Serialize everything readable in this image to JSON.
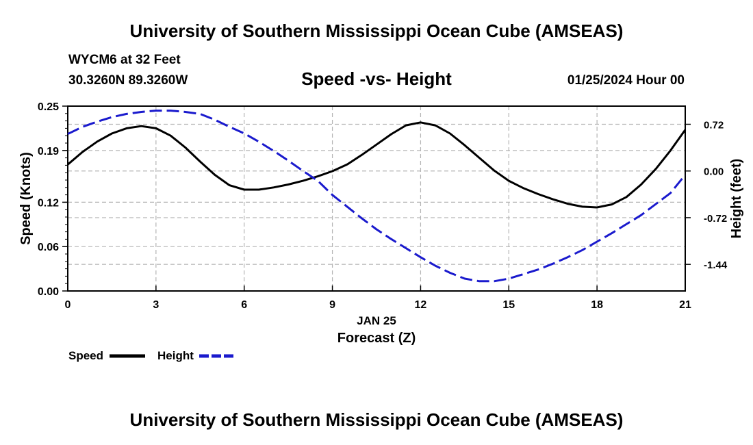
{
  "header": {
    "title": "University of Southern Mississippi Ocean Cube (AMSEAS)",
    "station": "WYCM6 at 32 Feet",
    "coords": "30.3260N  89.3260W",
    "datetime": "01/25/2024 Hour 00"
  },
  "footer": {
    "title": "University of Southern Mississippi Ocean Cube (AMSEAS)"
  },
  "legend": {
    "speed_label": "Speed",
    "height_label": "Height"
  },
  "colors": {
    "speed": "#000000",
    "height": "#1a1acd",
    "grid": "#b4b4b4"
  },
  "chart_data": {
    "type": "line",
    "title": "Speed -vs- Height",
    "xlabel": "Forecast (Z)",
    "xlabel_date": "JAN 25",
    "ylabel_left": "Speed (Knots)",
    "ylabel_right": "Height (feet)",
    "xlim": [
      0,
      21
    ],
    "ylim_left": [
      0,
      0.25
    ],
    "ylim_right": [
      -1.85,
      1.0
    ],
    "x_ticks": [
      0,
      3,
      6,
      9,
      12,
      15,
      18,
      21
    ],
    "x_tick_labels": [
      "0",
      "3",
      "6",
      "9",
      "12",
      "15",
      "18",
      "21"
    ],
    "y_left_ticks": [
      0,
      0.06,
      0.12,
      0.19,
      0.25
    ],
    "y_left_tick_labels": [
      "0.00",
      "0.06",
      "0.12",
      "0.19",
      "0.25"
    ],
    "y_right_ticks": [
      0.72,
      0.0,
      -0.72,
      -1.44
    ],
    "y_right_tick_labels": [
      "0.72",
      "0.00",
      "-0.72",
      "-1.44"
    ],
    "grid": true,
    "series": [
      {
        "name": "Speed",
        "axis": "left",
        "style": "solid",
        "x": [
          0,
          0.5,
          1,
          1.5,
          2,
          2.5,
          3,
          3.5,
          4,
          4.5,
          5,
          5.5,
          6,
          6.5,
          7,
          7.5,
          8,
          8.5,
          9,
          9.5,
          10,
          10.5,
          11,
          11.5,
          12,
          12.5,
          13,
          13.5,
          14,
          14.5,
          15,
          15.5,
          16,
          16.5,
          17,
          17.5,
          18,
          18.5,
          19,
          19.5,
          20,
          20.5,
          21
        ],
        "values": [
          0.171,
          0.188,
          0.202,
          0.213,
          0.22,
          0.223,
          0.22,
          0.21,
          0.194,
          0.175,
          0.157,
          0.143,
          0.137,
          0.137,
          0.14,
          0.144,
          0.149,
          0.155,
          0.162,
          0.171,
          0.184,
          0.198,
          0.212,
          0.224,
          0.228,
          0.224,
          0.213,
          0.197,
          0.18,
          0.163,
          0.149,
          0.139,
          0.131,
          0.124,
          0.118,
          0.114,
          0.113,
          0.117,
          0.127,
          0.144,
          0.165,
          0.19,
          0.218
        ]
      },
      {
        "name": "Height",
        "axis": "right",
        "style": "dashed",
        "x": [
          0,
          0.5,
          1,
          1.5,
          2,
          2.5,
          3,
          3.5,
          4,
          4.5,
          5,
          5.5,
          6,
          6.5,
          7,
          7.5,
          8,
          8.5,
          9,
          9.5,
          10,
          10.5,
          11,
          11.5,
          12,
          12.5,
          13,
          13.5,
          14,
          14.5,
          15,
          15.5,
          16,
          16.5,
          17,
          17.5,
          18,
          18.5,
          19,
          19.5,
          20,
          20.5,
          21
        ],
        "values": [
          0.57,
          0.68,
          0.76,
          0.83,
          0.88,
          0.91,
          0.93,
          0.93,
          0.91,
          0.88,
          0.79,
          0.68,
          0.58,
          0.45,
          0.31,
          0.16,
          0.0,
          -0.15,
          -0.37,
          -0.55,
          -0.73,
          -0.9,
          -1.05,
          -1.19,
          -1.33,
          -1.46,
          -1.57,
          -1.66,
          -1.7,
          -1.7,
          -1.66,
          -1.59,
          -1.52,
          -1.43,
          -1.33,
          -1.22,
          -1.09,
          -0.96,
          -0.82,
          -0.68,
          -0.51,
          -0.34,
          -0.06
        ]
      }
    ]
  }
}
